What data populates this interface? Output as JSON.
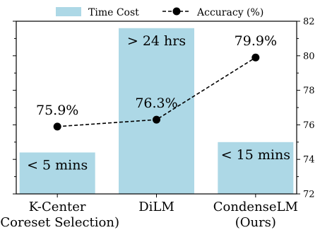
{
  "chart_data": {
    "type": "bar+line",
    "categories": [
      [
        "K-Center",
        "(Coreset Selection)"
      ],
      [
        "DiLM"
      ],
      [
        "CondenseLM",
        "(Ours)"
      ]
    ],
    "bar_series": {
      "name": "Time Cost",
      "color": "#add8e6",
      "values": [
        1.2,
        4.8,
        1.5
      ],
      "labels": [
        "< 5 mins",
        "> 24 hrs",
        "< 15 mins"
      ]
    },
    "line_series": {
      "name": "Accuracy (%)",
      "color": "#000000",
      "style": "dashed",
      "marker": "circle",
      "values": [
        75.9,
        76.3,
        79.9
      ],
      "labels": [
        "75.9%",
        "76.3%",
        "79.9%"
      ]
    },
    "left_axis": {
      "ticks_labeled": false,
      "ylim": [
        0,
        5
      ]
    },
    "right_axis": {
      "ylim": [
        72,
        82
      ],
      "ticks": [
        72,
        74,
        76,
        78,
        80,
        82
      ]
    },
    "legend": {
      "position": "top-center",
      "ncol": 2
    },
    "grid": false
  }
}
